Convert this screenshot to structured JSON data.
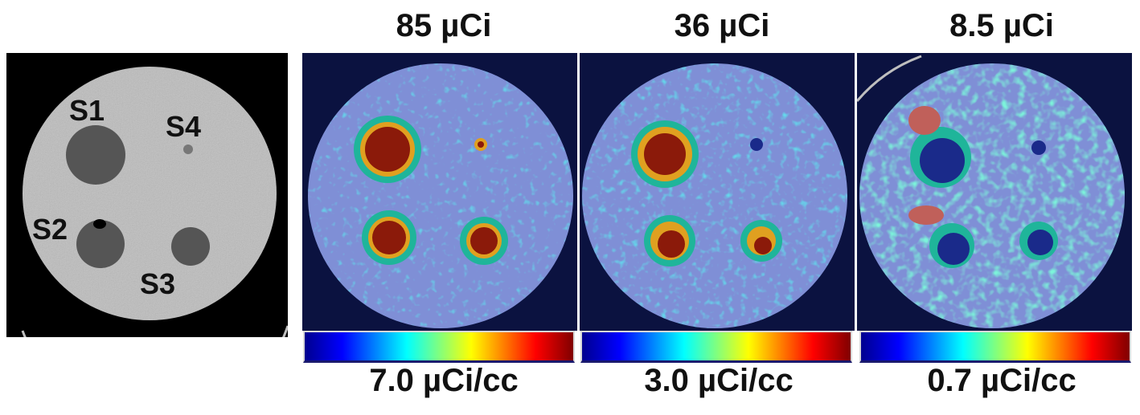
{
  "ct_labels": {
    "s1": "S1",
    "s2": "S2",
    "s3": "S3",
    "s4": "S4"
  },
  "panels": [
    {
      "title": "85 µCi",
      "colorbar_label": "7.0 µCi/cc"
    },
    {
      "title": "36 µCi",
      "colorbar_label": "3.0 µCi/cc"
    },
    {
      "title": "8.5 µCi",
      "colorbar_label": "0.7 µCi/cc"
    }
  ],
  "colors": {
    "pet_background": "#0b1240",
    "phantom_overlay": "#7f8fd6",
    "hot": "#8b1a0a",
    "colormap": [
      "#00008f",
      "#0000ff",
      "#00ffff",
      "#ffff00",
      "#ff0000",
      "#800000"
    ]
  }
}
